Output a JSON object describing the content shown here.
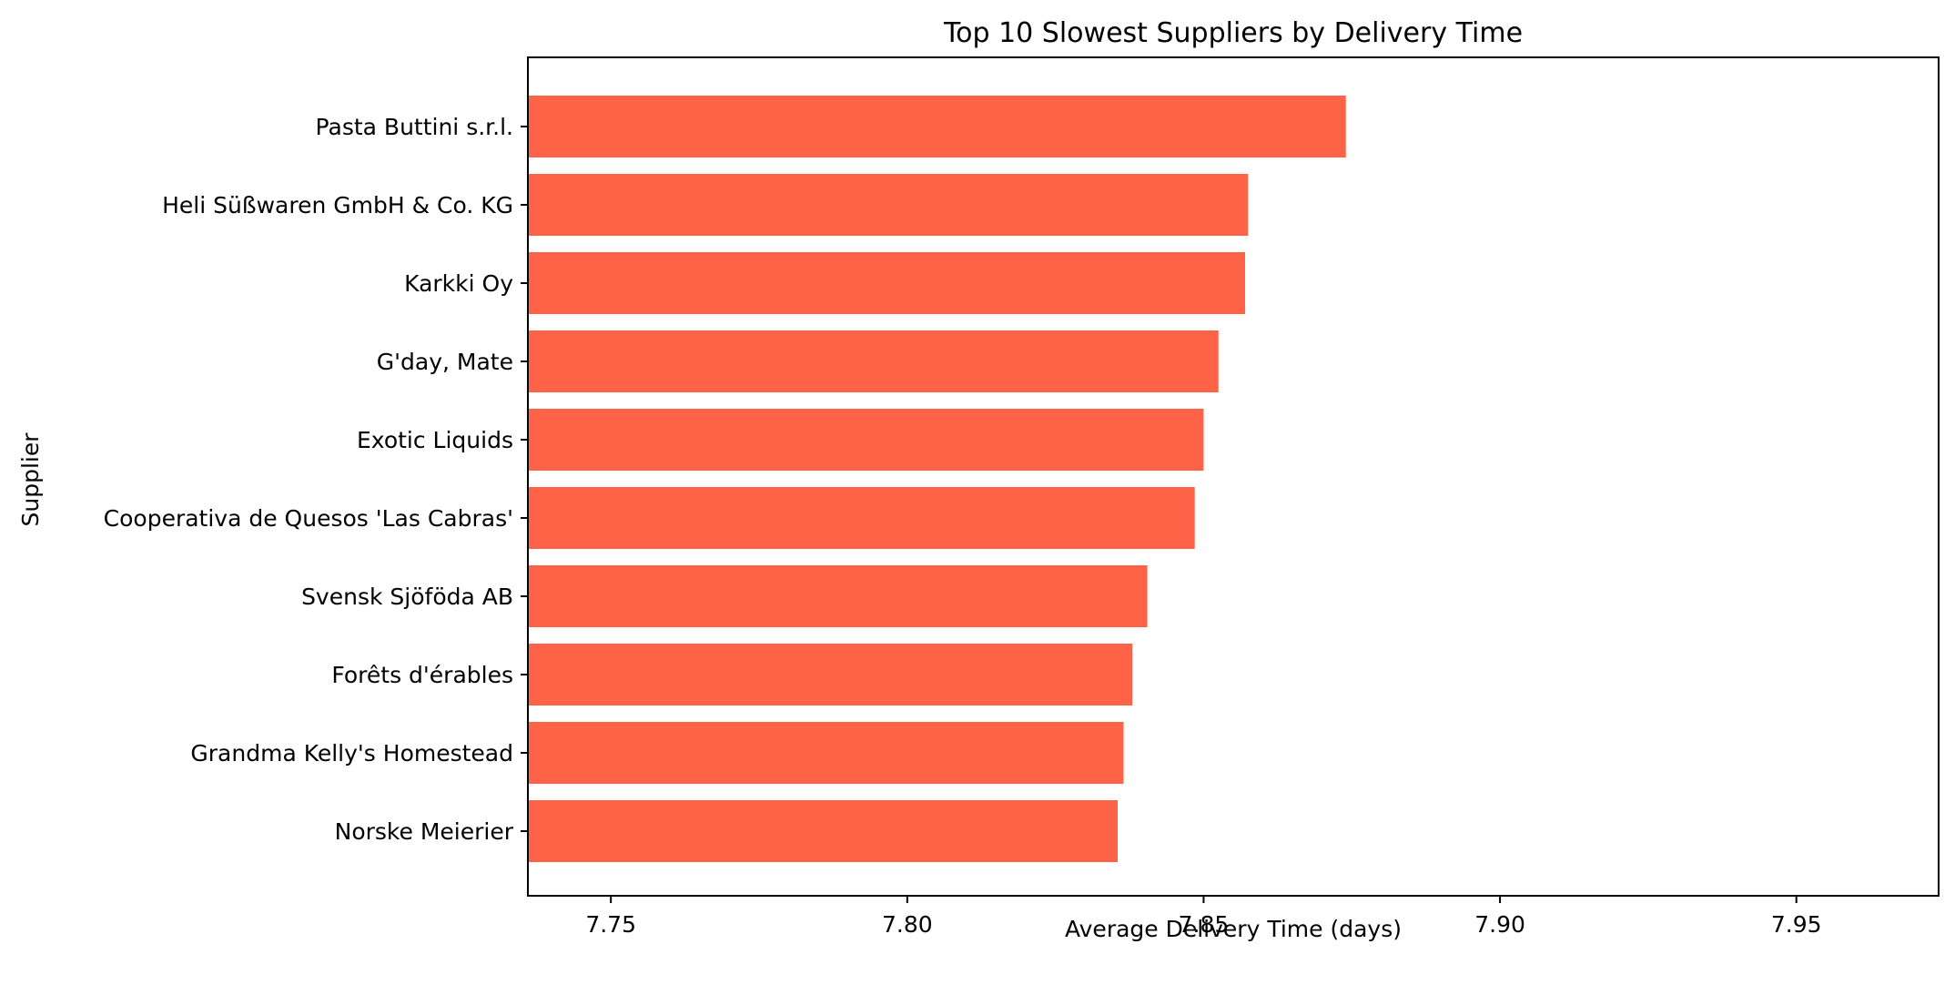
{
  "chart_data": {
    "type": "bar",
    "orientation": "horizontal",
    "title": "Top 10 Slowest Suppliers by Delivery Time",
    "xlabel": "Average Delivery Time (days)",
    "ylabel": "Supplier",
    "categories": [
      "Pasta Buttini s.r.l.",
      "Heli Süßwaren GmbH & Co. KG",
      "Karkki Oy",
      "G'day, Mate",
      "Exotic Liquids",
      "Cooperativa de Quesos 'Las Cabras'",
      "Svensk Sjöföda AB",
      "Forêts d'érables",
      "Grandma Kelly's Homestead",
      "Norske Meierier"
    ],
    "values": [
      7.874,
      7.8575,
      7.857,
      7.8525,
      7.85,
      7.8485,
      7.8405,
      7.838,
      7.8365,
      7.8355
    ],
    "xlim": [
      7.736,
      7.974
    ],
    "xticks": [
      7.75,
      7.8,
      7.85,
      7.9,
      7.95
    ],
    "xtick_labels": [
      "7.75",
      "7.80",
      "7.85",
      "7.90",
      "7.95"
    ],
    "bar_color": "#ff6347",
    "grid": false
  }
}
